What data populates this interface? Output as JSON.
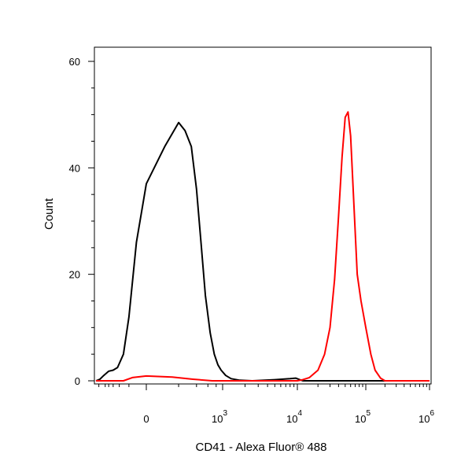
{
  "chart_data": {
    "type": "line",
    "title": "",
    "xlabel": "CD41 - Alexa Fluor® 488",
    "ylabel": "Count",
    "x_scale": "biexponential",
    "ylim": [
      0,
      60
    ],
    "y_ticks": [
      {
        "value": 0,
        "label": "0"
      },
      {
        "value": 20,
        "label": "20"
      },
      {
        "value": 40,
        "label": "40"
      },
      {
        "value": 60,
        "label": "60"
      }
    ],
    "x_ticks": [
      {
        "value": 0,
        "base": "0",
        "exp": ""
      },
      {
        "value": 1000,
        "base": "10",
        "exp": "3"
      },
      {
        "value": 10000,
        "base": "10",
        "exp": "4"
      },
      {
        "value": 100000,
        "base": "10",
        "exp": "5"
      },
      {
        "value": 1000000,
        "base": "10",
        "exp": "6"
      }
    ],
    "grid": false,
    "series": [
      {
        "color": "#000000",
        "points": [
          [
            -1800,
            0
          ],
          [
            -1400,
            0.3
          ],
          [
            -1100,
            1
          ],
          [
            -800,
            1.8
          ],
          [
            -600,
            2
          ],
          [
            -450,
            2.5
          ],
          [
            -300,
            5
          ],
          [
            -200,
            12
          ],
          [
            -100,
            26
          ],
          [
            0,
            37
          ],
          [
            100,
            44
          ],
          [
            200,
            48.5
          ],
          [
            260,
            47
          ],
          [
            330,
            44
          ],
          [
            400,
            36
          ],
          [
            470,
            26
          ],
          [
            550,
            16
          ],
          [
            650,
            9
          ],
          [
            750,
            5
          ],
          [
            850,
            3
          ],
          [
            950,
            2
          ],
          [
            1100,
            1
          ],
          [
            1300,
            0.4
          ],
          [
            1700,
            0.1
          ],
          [
            2500,
            0
          ],
          [
            5000,
            0.2
          ],
          [
            8000,
            0.4
          ],
          [
            9500,
            0.5
          ],
          [
            12000,
            0
          ],
          [
            50000,
            0
          ],
          [
            1000000,
            0
          ]
        ]
      },
      {
        "color": "#ff0000",
        "points": [
          [
            -1800,
            0
          ],
          [
            -300,
            0
          ],
          [
            -150,
            0.6
          ],
          [
            0,
            0.9
          ],
          [
            150,
            0.7
          ],
          [
            350,
            0.3
          ],
          [
            700,
            0
          ],
          [
            5000,
            0
          ],
          [
            10000,
            0
          ],
          [
            12000,
            0.2
          ],
          [
            15000,
            0.6
          ],
          [
            20000,
            2
          ],
          [
            25000,
            5
          ],
          [
            30000,
            10
          ],
          [
            35000,
            19
          ],
          [
            40000,
            31
          ],
          [
            45000,
            42
          ],
          [
            50000,
            49.5
          ],
          [
            55000,
            50.5
          ],
          [
            60000,
            46
          ],
          [
            67000,
            33
          ],
          [
            75000,
            20
          ],
          [
            85000,
            15
          ],
          [
            100000,
            10
          ],
          [
            120000,
            5
          ],
          [
            140000,
            2
          ],
          [
            170000,
            0.5
          ],
          [
            200000,
            0
          ],
          [
            1000000,
            0
          ]
        ]
      }
    ]
  }
}
